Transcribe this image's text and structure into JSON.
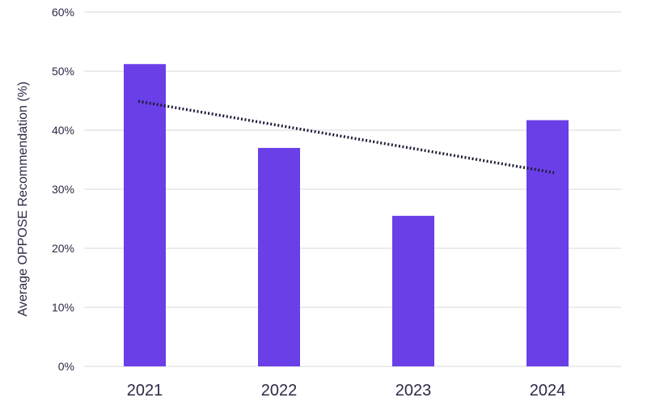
{
  "chart_data": {
    "type": "bar",
    "title": "",
    "xlabel": "",
    "ylabel": "Average OPPOSE Recommendation (%)",
    "categories": [
      "2021",
      "2022",
      "2023",
      "2024"
    ],
    "values": [
      51.2,
      37.0,
      25.5,
      41.7
    ],
    "ylim": [
      0,
      60
    ],
    "yticks": [
      0,
      10,
      20,
      30,
      40,
      50,
      60
    ],
    "ytick_labels": [
      "0%",
      "10%",
      "20%",
      "30%",
      "40%",
      "50%",
      "60%"
    ],
    "grid": true,
    "legend": "none",
    "trendline": {
      "type": "linear",
      "style": "dotted",
      "start": {
        "x": "2021",
        "y": 44.9
      },
      "end": {
        "x": "2024",
        "y": 32.8
      }
    },
    "colors": {
      "bar": "#6a3fe8",
      "trendline": "#1f1d3a",
      "grid": "#d9d9d9",
      "text": "#2b2a45"
    }
  }
}
